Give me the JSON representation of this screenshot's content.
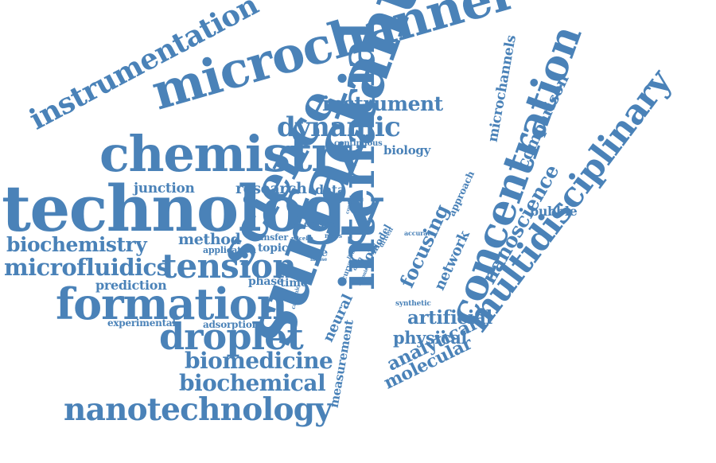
{
  "accent_color": "#4a82b8",
  "words": {
    "microchannel": "microchannel",
    "instrumentation": "instrumentation",
    "instrument": "instrument",
    "chemistry": "chemistry",
    "dynamic": "dynamic",
    "technology": "technology",
    "continuous": "continuous",
    "biology": "biology",
    "junction": "junction",
    "research": "research",
    "data": "data",
    "biochemistry": "biochemistry",
    "method": "method",
    "microfluidics": "microfluidics",
    "tension": "tension.",
    "prediction": "prediction",
    "phase": "phase",
    "time": "time",
    "formation": "formation",
    "experimental": "experimental",
    "adsorption": "adsorption",
    "droplet": "droplet",
    "biomedicine": "biomedicine",
    "biochemical": "biochemical",
    "nanotechnology": "nanotechnology",
    "science": "science",
    "surfactant": "surfactant",
    "interfacial": "interfacial",
    "concentration": "concentration",
    "multidisciplinary": "multidisciplinary",
    "nanoscience": "nanoscience",
    "microchannels": "microchannels",
    "comparison": "comparison",
    "bubble": "bubble",
    "focusing": "focusing",
    "network": "network",
    "artificial": "artificial",
    "physical": "physical",
    "analytical": "analytical",
    "molecular": "molecular",
    "measurement": "measurement",
    "neural": "neural",
    "flow": "flow",
    "model": "model",
    "approach": "approach",
    "critical": "critical",
    "transfer": "transfer",
    "topic": "topic",
    "application": "application",
    "size": "size",
    "micelle": "micelle",
    "mass": "mass",
    "mapse": "mapse",
    "synthetic": "synthetic",
    "accurate": "accurate",
    "cationic": "cationic",
    "driven": "driven",
    "curve": "curve",
    "life": "life",
    "drop": "drop",
    "control": "control",
    "anionic": "anionic"
  }
}
